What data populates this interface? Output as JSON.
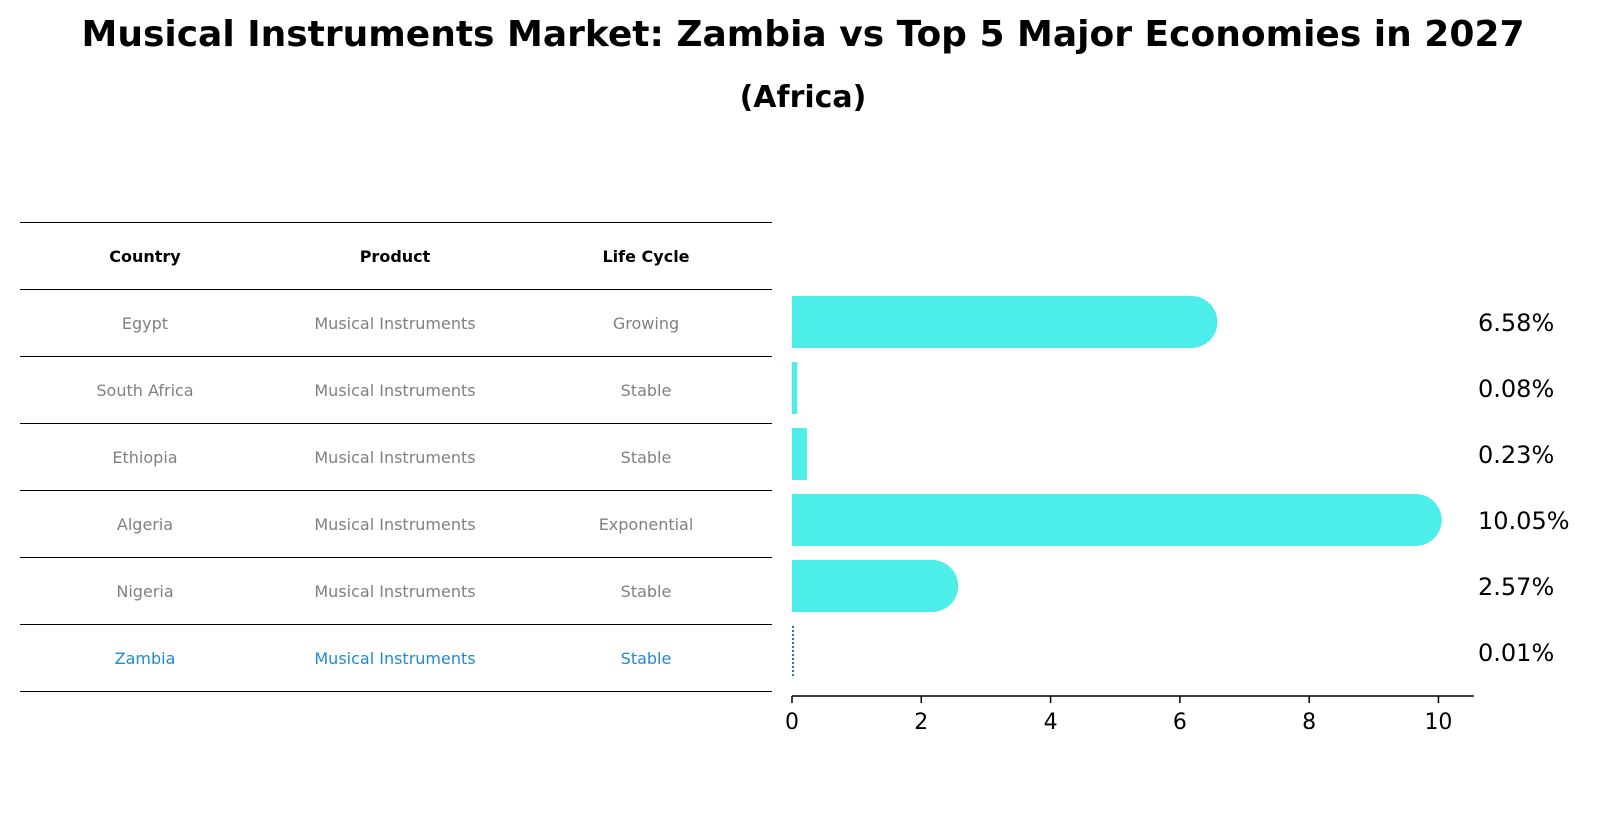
{
  "header": {
    "title": "Musical Instruments Market: Zambia vs Top 5 Major Economies in 2027",
    "subtitle": "(Africa)"
  },
  "table": {
    "columns": [
      "Country",
      "Product",
      "Life Cycle"
    ],
    "rows": [
      {
        "country": "Egypt",
        "product": "Musical Instruments",
        "life_cycle": "Growing"
      },
      {
        "country": "South Africa",
        "product": "Musical Instruments",
        "life_cycle": "Stable"
      },
      {
        "country": "Ethiopia",
        "product": "Musical Instruments",
        "life_cycle": "Stable"
      },
      {
        "country": "Algeria",
        "product": "Musical Instruments",
        "life_cycle": "Exponential"
      },
      {
        "country": "Nigeria",
        "product": "Musical Instruments",
        "life_cycle": "Stable"
      },
      {
        "country": "Zambia",
        "product": "Musical Instruments",
        "life_cycle": "Stable"
      }
    ]
  },
  "chart_data": {
    "type": "bar",
    "orientation": "horizontal",
    "categories": [
      "Egypt",
      "South Africa",
      "Ethiopia",
      "Algeria",
      "Nigeria",
      "Zambia"
    ],
    "values": [
      6.58,
      0.08,
      0.23,
      10.05,
      2.57,
      0.01
    ],
    "value_labels": [
      "6.58%",
      "0.08%",
      "0.23%",
      "10.05%",
      "2.57%",
      "0.01%"
    ],
    "x_ticks": [
      "0",
      "2",
      "4",
      "6",
      "8",
      "10"
    ],
    "xlim": [
      0,
      10.55
    ],
    "highlight": "Zambia",
    "colors": {
      "bar": "#4deeea",
      "highlight": "#1f77b4",
      "highlight_text": "#1f8ad0",
      "text_muted": "#808080"
    }
  }
}
